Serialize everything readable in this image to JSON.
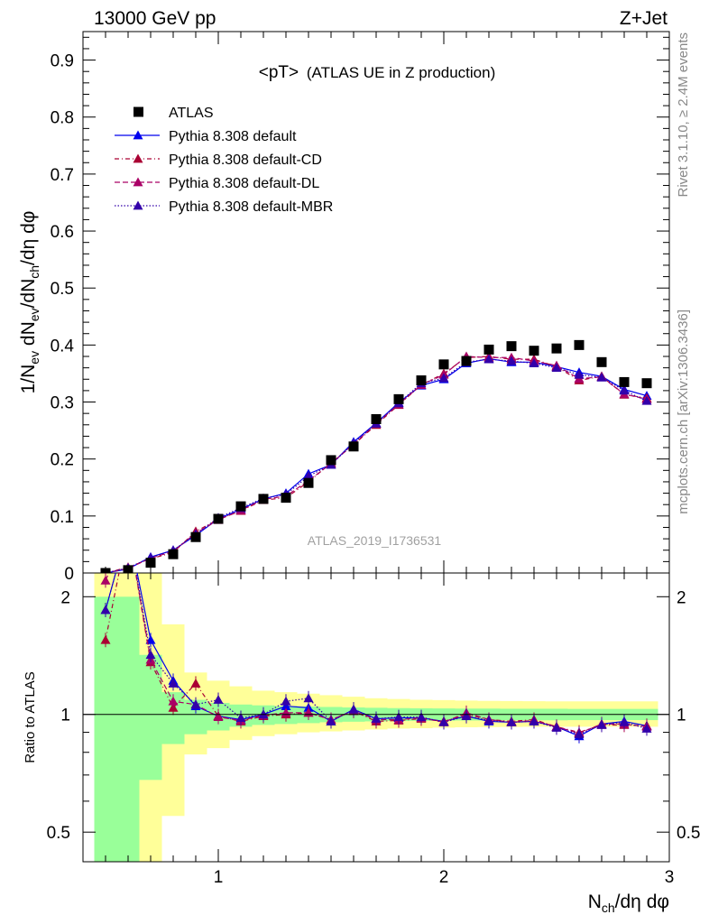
{
  "header": {
    "left": "13000 GeV pp",
    "right": "Z+Jet"
  },
  "side_text": {
    "rivet": "Rivet 3.1.10, ≥ 2.4M events",
    "mcplots": "mcplots.cern.ch [arXiv:1306.3436]"
  },
  "chart_data": {
    "type": "scatter",
    "title": "<pT>",
    "title_suffix": "(ATLAS UE in Z production)",
    "watermark": "ATLAS_2019_I1736531",
    "xlabel": "N_ch/dη dφ",
    "ylabel": "1/N_ev dN_ev/dN_ch/dη dφ",
    "ratio_ylabel": "Ratio to ATLAS",
    "xlim": [
      0.4,
      3.0
    ],
    "ylim": [
      0,
      0.95
    ],
    "ratio_ylim": [
      0.42,
      2.3
    ],
    "ratio_log": true,
    "x_ticks": [
      "1",
      "2",
      "3"
    ],
    "y_ticks": [
      "0",
      "0.1",
      "0.2",
      "0.3",
      "0.4",
      "0.5",
      "0.6",
      "0.7",
      "0.8",
      "0.9"
    ],
    "ratio_ticks": [
      "0.5",
      "1",
      "2"
    ],
    "legend_position": "top-left",
    "x": [
      0.5,
      0.6,
      0.7,
      0.8,
      0.9,
      1.0,
      1.1,
      1.2,
      1.3,
      1.4,
      1.5,
      1.6,
      1.7,
      1.8,
      1.9,
      2.0,
      2.1,
      2.2,
      2.3,
      2.4,
      2.5,
      2.6,
      2.7,
      2.8,
      2.9
    ],
    "data": {
      "name": "ATLAS",
      "color": "#000000",
      "values": [
        0.0,
        0.005,
        0.018,
        0.033,
        0.063,
        0.095,
        0.117,
        0.13,
        0.132,
        0.158,
        0.198,
        0.222,
        0.27,
        0.305,
        0.338,
        0.366,
        0.372,
        0.392,
        0.398,
        0.39,
        0.394,
        0.4,
        0.37,
        0.335,
        0.333
      ]
    },
    "series": [
      {
        "name": "Pythia 8.308 default",
        "color": "#0000ee",
        "dash": "solid",
        "values": [
          0.0,
          0.007,
          0.028,
          0.04,
          0.066,
          0.095,
          0.112,
          0.13,
          0.14,
          0.174,
          0.19,
          0.23,
          0.263,
          0.299,
          0.329,
          0.34,
          0.368,
          0.376,
          0.37,
          0.37,
          0.362,
          0.352,
          0.345,
          0.322,
          0.311
        ],
        "ratio": [
          1.85,
          3.0,
          1.55,
          1.22,
          1.05,
          0.99,
          0.97,
          1.0,
          1.05,
          1.04,
          0.96,
          1.03,
          0.975,
          0.98,
          0.98,
          0.96,
          0.99,
          0.96,
          0.955,
          0.96,
          0.93,
          0.88,
          0.945,
          0.96,
          0.935
        ]
      },
      {
        "name": "Pythia 8.308 default-CD",
        "color": "#aa0033",
        "dash": "5,3,1,3",
        "values": [
          0.0,
          0.01,
          0.025,
          0.036,
          0.073,
          0.094,
          0.109,
          0.128,
          0.132,
          0.16,
          0.193,
          0.225,
          0.26,
          0.295,
          0.33,
          0.35,
          0.378,
          0.38,
          0.375,
          0.375,
          0.362,
          0.338,
          0.345,
          0.313,
          0.307
        ],
        "ratio": [
          1.55,
          3.0,
          1.36,
          1.04,
          1.2,
          0.99,
          0.96,
          0.99,
          1.0,
          1.01,
          0.97,
          1.02,
          0.96,
          0.965,
          0.975,
          0.96,
          1.0,
          0.97,
          0.96,
          0.97,
          0.93,
          0.9,
          0.94,
          0.94,
          0.935
        ]
      },
      {
        "name": "Pythia 8.308 default-DL",
        "color": "#aa0066",
        "dash": "6,3",
        "values": [
          0.0,
          0.008,
          0.026,
          0.038,
          0.07,
          0.093,
          0.11,
          0.129,
          0.135,
          0.162,
          0.192,
          0.226,
          0.262,
          0.296,
          0.33,
          0.348,
          0.38,
          0.378,
          0.378,
          0.372,
          0.364,
          0.341,
          0.344,
          0.314,
          0.305
        ],
        "ratio": [
          2.2,
          3.0,
          1.38,
          1.08,
          1.06,
          0.985,
          0.965,
          0.995,
          1.01,
          1.01,
          0.97,
          1.02,
          0.97,
          0.97,
          0.98,
          0.955,
          1.01,
          0.97,
          0.955,
          0.965,
          0.93,
          0.895,
          0.945,
          0.945,
          0.93
        ]
      },
      {
        "name": "Pythia 8.308 default-MBR",
        "color": "#3300aa",
        "dash": "1.5,2",
        "values": [
          0.0,
          0.009,
          0.027,
          0.04,
          0.068,
          0.097,
          0.114,
          0.131,
          0.138,
          0.17,
          0.19,
          0.228,
          0.262,
          0.298,
          0.333,
          0.342,
          0.37,
          0.375,
          0.372,
          0.368,
          0.36,
          0.348,
          0.343,
          0.32,
          0.302
        ],
        "ratio": [
          1.85,
          3.0,
          1.42,
          1.2,
          1.06,
          1.09,
          0.98,
          1.0,
          1.08,
          1.1,
          0.96,
          1.03,
          0.975,
          0.985,
          0.985,
          0.955,
          0.99,
          0.965,
          0.955,
          0.96,
          0.925,
          0.89,
          0.94,
          0.955,
          0.92
        ]
      }
    ],
    "bands": {
      "x_edges": [
        0.45,
        0.55,
        0.65,
        0.75,
        0.85,
        0.95,
        1.05,
        1.15,
        1.25,
        1.35,
        1.45,
        1.55,
        1.65,
        1.75,
        1.85,
        1.95,
        2.05,
        2.15,
        2.25,
        2.35,
        2.45,
        2.55,
        2.65,
        2.75,
        2.85,
        2.95
      ],
      "green_lo": [
        0.3,
        0.3,
        0.68,
        0.84,
        0.89,
        0.91,
        0.93,
        0.94,
        0.945,
        0.95,
        0.955,
        0.958,
        0.96,
        0.962,
        0.963,
        0.964,
        0.965,
        0.965,
        0.966,
        0.966,
        0.966,
        0.967,
        0.967,
        0.967,
        0.967
      ],
      "green_hi": [
        2.0,
        2.0,
        1.42,
        1.14,
        1.09,
        1.07,
        1.06,
        1.055,
        1.05,
        1.048,
        1.045,
        1.042,
        1.04,
        1.038,
        1.037,
        1.036,
        1.035,
        1.035,
        1.034,
        1.034,
        1.034,
        1.033,
        1.033,
        1.033,
        1.033
      ],
      "yellow_lo": [
        0.3,
        0.3,
        0.3,
        0.55,
        0.79,
        0.82,
        0.86,
        0.88,
        0.89,
        0.9,
        0.905,
        0.91,
        0.915,
        0.92,
        0.922,
        0.925,
        0.927,
        0.928,
        0.929,
        0.93,
        0.93,
        0.93,
        0.93,
        0.93,
        0.93
      ],
      "yellow_hi": [
        3.0,
        3.0,
        3.0,
        1.7,
        1.28,
        1.22,
        1.18,
        1.15,
        1.14,
        1.13,
        1.12,
        1.11,
        1.1,
        1.095,
        1.09,
        1.088,
        1.085,
        1.083,
        1.082,
        1.081,
        1.08,
        1.08,
        1.08,
        1.08,
        1.08
      ],
      "green_color": "#99ff99",
      "yellow_color": "#ffff99"
    }
  }
}
